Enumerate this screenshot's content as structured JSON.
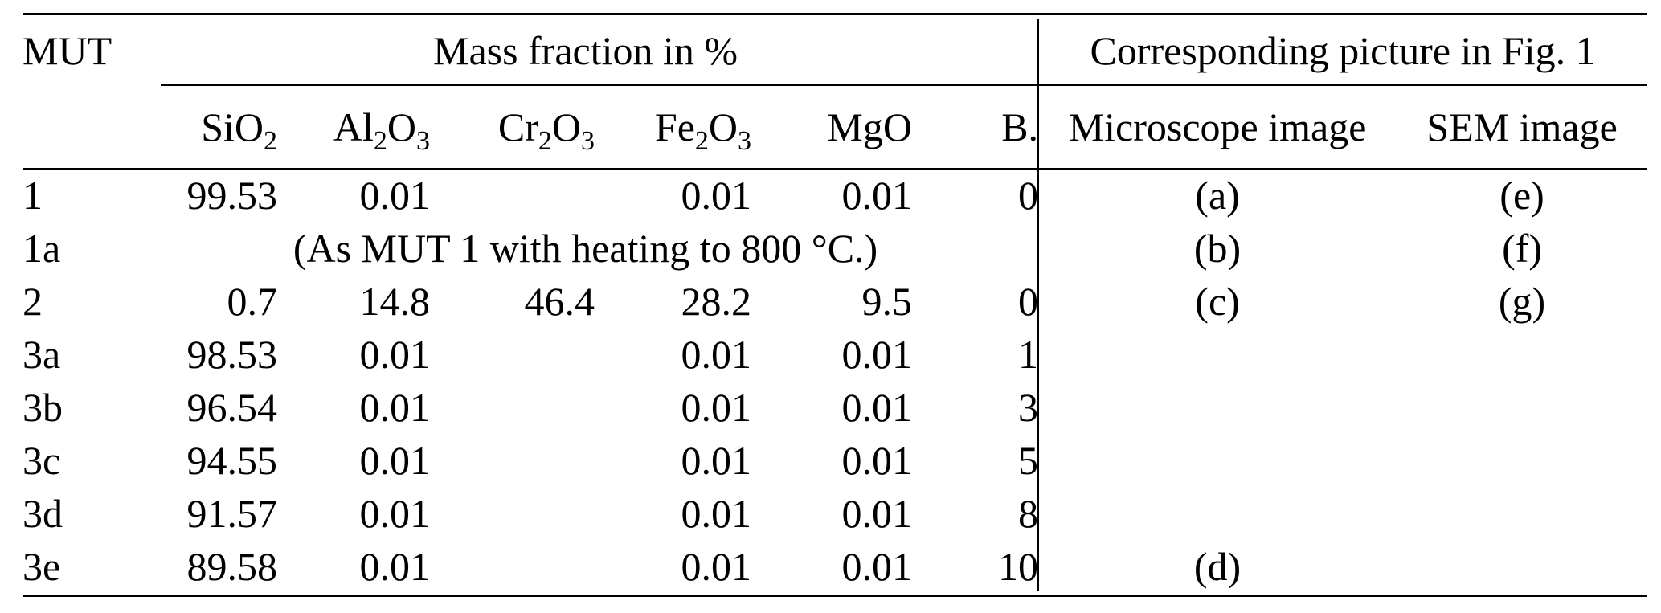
{
  "table": {
    "title_columns": {
      "mut": "MUT",
      "mass_fraction_group": "Mass fraction in %",
      "picture_group": "Corresponding picture in Fig. 1"
    },
    "mass_fraction_columns": [
      "SiO_2",
      "Al_2O_3",
      "Cr_2O_3",
      "Fe_2O_3",
      "MgO",
      "B."
    ],
    "picture_columns": [
      "Microscope image",
      "SEM image"
    ],
    "rows": [
      {
        "mut": "1",
        "values": [
          "99.53",
          "0.01",
          "",
          "0.01",
          "0.01",
          "0"
        ],
        "microscope": "(a)",
        "sem": "(e)"
      },
      {
        "mut": "1a",
        "note": "(As MUT 1 with heating to 800 °C.)",
        "microscope": "(b)",
        "sem": "(f)"
      },
      {
        "mut": "2",
        "values": [
          "0.7",
          "14.8",
          "46.4",
          "28.2",
          "9.5",
          "0"
        ],
        "microscope": "(c)",
        "sem": "(g)"
      },
      {
        "mut": "3a",
        "values": [
          "98.53",
          "0.01",
          "",
          "0.01",
          "0.01",
          "1"
        ],
        "microscope": "",
        "sem": ""
      },
      {
        "mut": "3b",
        "values": [
          "96.54",
          "0.01",
          "",
          "0.01",
          "0.01",
          "3"
        ],
        "microscope": "",
        "sem": ""
      },
      {
        "mut": "3c",
        "values": [
          "94.55",
          "0.01",
          "",
          "0.01",
          "0.01",
          "5"
        ],
        "microscope": "",
        "sem": ""
      },
      {
        "mut": "3d",
        "values": [
          "91.57",
          "0.01",
          "",
          "0.01",
          "0.01",
          "8"
        ],
        "microscope": "",
        "sem": ""
      },
      {
        "mut": "3e",
        "values": [
          "89.58",
          "0.01",
          "",
          "0.01",
          "0.01",
          "10"
        ],
        "microscope": "(d)",
        "sem": ""
      }
    ]
  }
}
